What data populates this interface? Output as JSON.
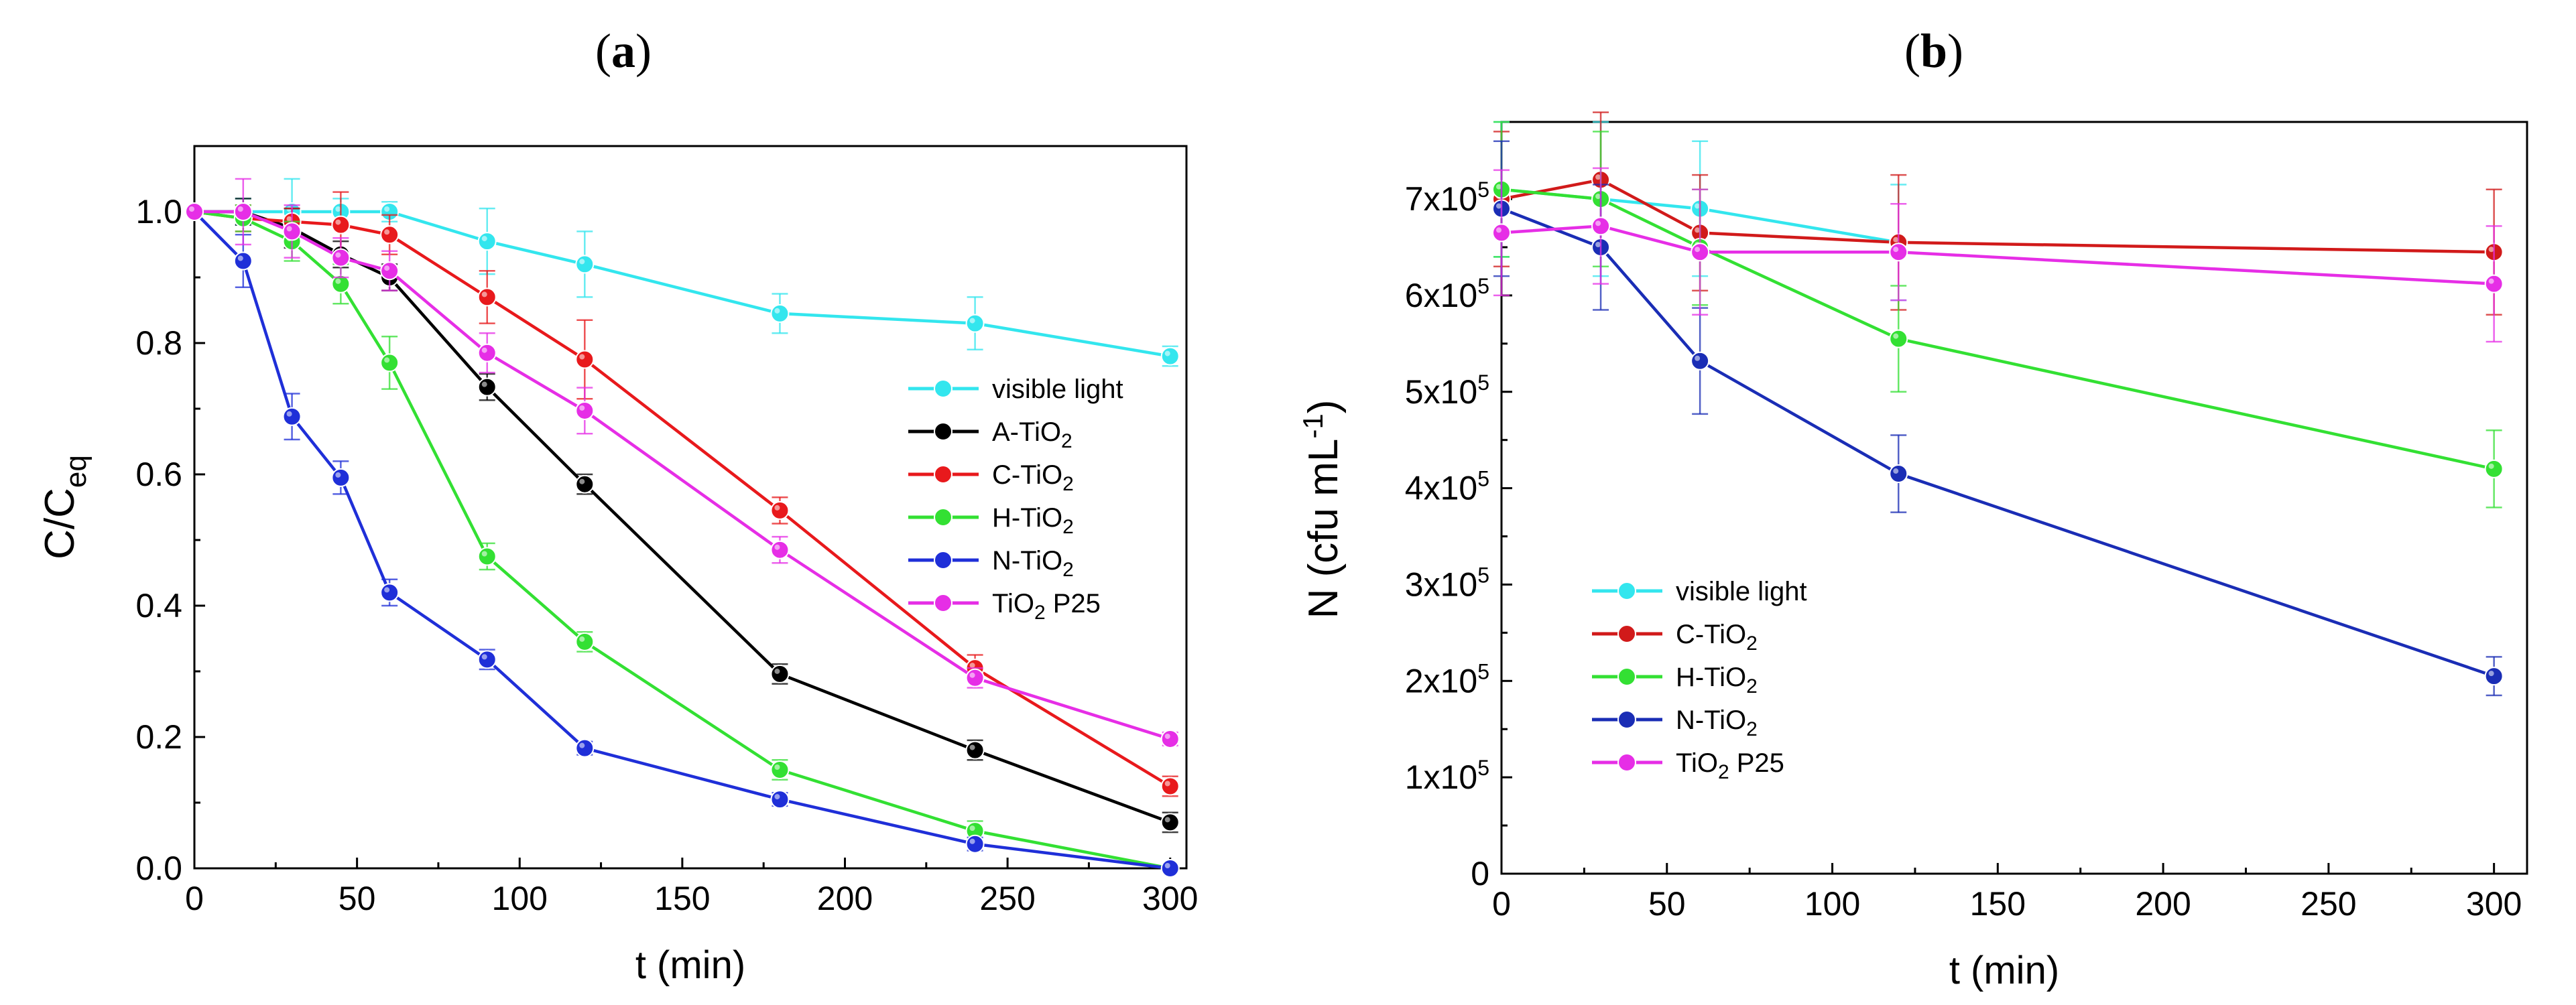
{
  "colors": {
    "axis": "#000000",
    "visible_light": "#33e6ee",
    "A_TiO2": "#000000",
    "C_TiO2": "#e8191c",
    "C_TiO2_b": "#d11a1a",
    "H_TiO2": "#33e033",
    "N_TiO2": "#1f2fd8",
    "N_TiO2_b": "#1a2db5",
    "TiO2_P25": "#e62ee6"
  },
  "chart_data": [
    {
      "panel": "(a)",
      "type": "line",
      "xlabel": "t (min)",
      "ylabel": "C/C_eq",
      "xlim": [
        0,
        305
      ],
      "ylim": [
        0,
        1.1
      ],
      "xticks": [
        0,
        50,
        100,
        150,
        200,
        250,
        300
      ],
      "yticks": [
        0.0,
        0.2,
        0.4,
        0.6,
        0.8,
        1.0
      ],
      "ytick_labels": [
        "0.0",
        "0.2",
        "0.4",
        "0.6",
        "0.8",
        "1.0"
      ],
      "legend_position": "center-right",
      "series": [
        {
          "name": "visible light",
          "color_key": "visible_light",
          "x": [
            0,
            15,
            30,
            45,
            60,
            90,
            120,
            180,
            240,
            300
          ],
          "y": [
            1.0,
            1.0,
            1.0,
            1.0,
            1.0,
            0.955,
            0.92,
            0.845,
            0.83,
            0.78
          ],
          "err": [
            0.0,
            0.02,
            0.05,
            0.02,
            0.015,
            0.05,
            0.05,
            0.03,
            0.04,
            0.015
          ]
        },
        {
          "name": "A-TiO2",
          "color_key": "A_TiO2",
          "x": [
            0,
            15,
            30,
            45,
            60,
            90,
            120,
            180,
            240,
            300
          ],
          "y": [
            1.0,
            1.0,
            0.975,
            0.935,
            0.9,
            0.733,
            0.585,
            0.296,
            0.18,
            0.07
          ],
          "err": [
            0.0,
            0.02,
            0.03,
            0.02,
            0.02,
            0.02,
            0.015,
            0.015,
            0.015,
            0.015
          ]
        },
        {
          "name": "C-TiO2",
          "color_key": "C_TiO2",
          "x": [
            0,
            15,
            30,
            45,
            60,
            90,
            120,
            180,
            240,
            300
          ],
          "y": [
            1.0,
            0.99,
            0.985,
            0.98,
            0.965,
            0.87,
            0.775,
            0.545,
            0.305,
            0.125
          ],
          "err": [
            0.0,
            0.02,
            0.02,
            0.05,
            0.03,
            0.04,
            0.06,
            0.02,
            0.02,
            0.015
          ]
        },
        {
          "name": "H-TiO2",
          "color_key": "H_TiO2",
          "x": [
            0,
            15,
            30,
            45,
            60,
            90,
            120,
            180,
            240,
            300
          ],
          "y": [
            1.0,
            0.99,
            0.955,
            0.89,
            0.77,
            0.475,
            0.345,
            0.15,
            0.057,
            0.0
          ],
          "err": [
            0.0,
            0.02,
            0.03,
            0.03,
            0.04,
            0.02,
            0.015,
            0.015,
            0.015,
            0.005
          ]
        },
        {
          "name": "N-TiO2",
          "color_key": "N_TiO2",
          "x": [
            0,
            15,
            30,
            45,
            60,
            90,
            120,
            180,
            240,
            300
          ],
          "y": [
            1.0,
            0.925,
            0.688,
            0.595,
            0.42,
            0.318,
            0.183,
            0.105,
            0.037,
            0.0
          ],
          "err": [
            0.0,
            0.04,
            0.035,
            0.025,
            0.02,
            0.015,
            0.01,
            0.01,
            0.01,
            0.005
          ]
        },
        {
          "name": "TiO2 P25",
          "color_key": "TiO2_P25",
          "x": [
            0,
            15,
            30,
            45,
            60,
            90,
            120,
            180,
            240,
            300
          ],
          "y": [
            1.0,
            1.0,
            0.97,
            0.93,
            0.91,
            0.785,
            0.697,
            0.485,
            0.29,
            0.197
          ],
          "err": [
            0.0,
            0.05,
            0.04,
            0.03,
            0.03,
            0.03,
            0.035,
            0.02,
            0.015,
            0.01
          ]
        }
      ]
    },
    {
      "panel": "(b)",
      "type": "line",
      "xlabel": "t (min)",
      "ylabel": "N (cfu mL^-1)",
      "xlim": [
        0,
        310
      ],
      "ylim": [
        0,
        780000
      ],
      "xticks": [
        0,
        50,
        100,
        150,
        200,
        250,
        300
      ],
      "yticks": [
        0,
        100000,
        200000,
        300000,
        400000,
        500000,
        600000,
        700000
      ],
      "ytick_mantissas": [
        "0",
        "1",
        "2",
        "3",
        "4",
        "5",
        "6",
        "7"
      ],
      "ytick_sep": "x10",
      "ytick_exp": "5",
      "legend_position": "lower-left",
      "series": [
        {
          "name": "visible light",
          "color_key": "visible_light",
          "x": [
            0,
            30,
            60,
            120
          ],
          "y": [
            710000,
            700000,
            690000,
            655000
          ],
          "err": [
            70000,
            80000,
            70000,
            60000
          ]
        },
        {
          "name": "C-TiO2",
          "color_key": "C_TiO2_b",
          "x": [
            0,
            30,
            60,
            120,
            300
          ],
          "y": [
            700000,
            720000,
            665000,
            655000,
            645000
          ],
          "err": [
            70000,
            70000,
            60000,
            70000,
            65000
          ]
        },
        {
          "name": "H-TiO2",
          "color_key": "H_TiO2",
          "x": [
            0,
            30,
            60,
            120,
            300
          ],
          "y": [
            710000,
            700000,
            650000,
            555000,
            420000
          ],
          "err": [
            70000,
            70000,
            60000,
            55000,
            40000
          ]
        },
        {
          "name": "N-TiO2",
          "color_key": "N_TiO2_b",
          "x": [
            0,
            30,
            60,
            120,
            300
          ],
          "y": [
            690000,
            650000,
            532000,
            415000,
            205000
          ],
          "err": [
            70000,
            65000,
            55000,
            40000,
            20000
          ]
        },
        {
          "name": "TiO2 P25",
          "color_key": "TiO2_P25",
          "x": [
            0,
            30,
            60,
            120,
            300
          ],
          "y": [
            665000,
            672000,
            645000,
            645000,
            612000
          ],
          "err": [
            65000,
            60000,
            65000,
            50000,
            60000
          ]
        }
      ]
    }
  ]
}
